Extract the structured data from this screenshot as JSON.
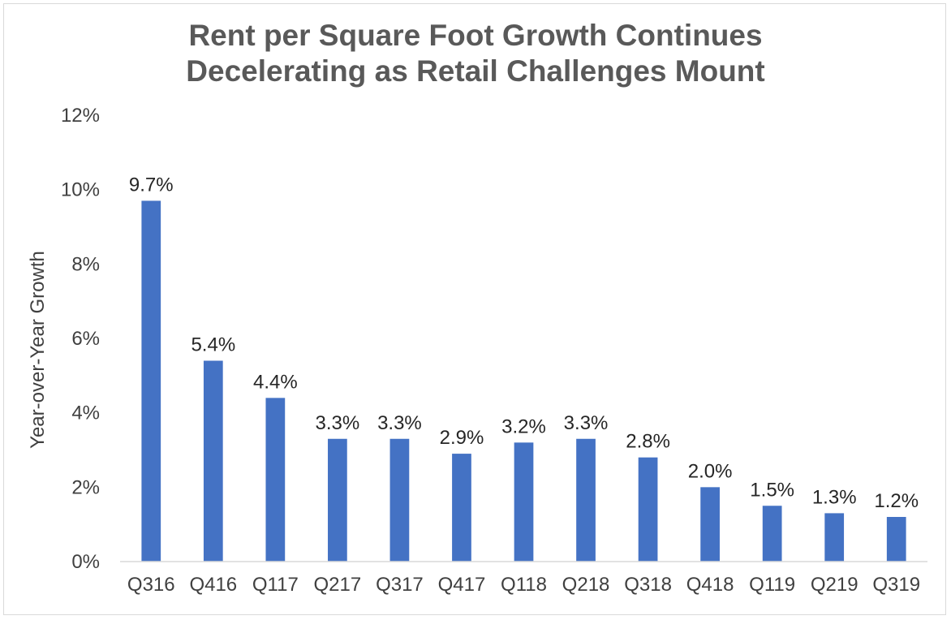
{
  "chart_data": {
    "type": "bar",
    "title_line1": "Rent per Square Foot Growth Continues",
    "title_line2": "Decelerating as Retail Challenges Mount",
    "xlabel": "",
    "ylabel": "Year-over-Year Growth",
    "ylim": [
      0,
      12
    ],
    "yticks": [
      "0%",
      "2%",
      "4%",
      "6%",
      "8%",
      "10%",
      "12%"
    ],
    "categories": [
      "Q316",
      "Q416",
      "Q117",
      "Q217",
      "Q317",
      "Q417",
      "Q118",
      "Q218",
      "Q318",
      "Q418",
      "Q119",
      "Q219",
      "Q319"
    ],
    "values": [
      9.7,
      5.4,
      4.4,
      3.3,
      3.3,
      2.9,
      3.2,
      3.3,
      2.8,
      2.0,
      1.5,
      1.3,
      1.2
    ],
    "data_labels": [
      "9.7%",
      "5.4%",
      "4.4%",
      "3.3%",
      "3.3%",
      "2.9%",
      "3.2%",
      "3.3%",
      "2.8%",
      "2.0%",
      "1.5%",
      "1.3%",
      "1.2%"
    ],
    "bar_color": "#4472C4",
    "grid": false,
    "legend": "none"
  }
}
